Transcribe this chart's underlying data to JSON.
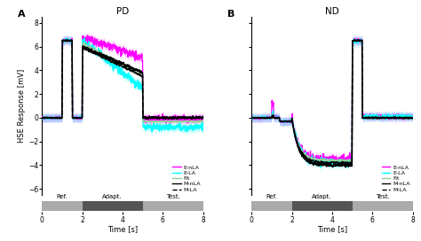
{
  "title_A": "PD",
  "title_B": "ND",
  "panel_A": "A",
  "panel_B": "B",
  "ylabel": "HSE Response [mV]",
  "xlabel": "Time [s]",
  "ylim": [
    -6.5,
    8.5
  ],
  "xlim": [
    0,
    8
  ],
  "yticks": [
    -6,
    -4,
    -2,
    0,
    2,
    4,
    6,
    8
  ],
  "xticks": [
    0,
    2,
    4,
    6,
    8
  ],
  "colors": {
    "E_nLA": "#ff00ff",
    "E_LA": "#00ffff",
    "Fit": "#99cc99",
    "M_nLA": "#000000",
    "M_LA": "#000000"
  },
  "bar_ref_color": "#aaaaaa",
  "bar_adapt_color": "#555555",
  "bar_test_color": "#aaaaaa"
}
